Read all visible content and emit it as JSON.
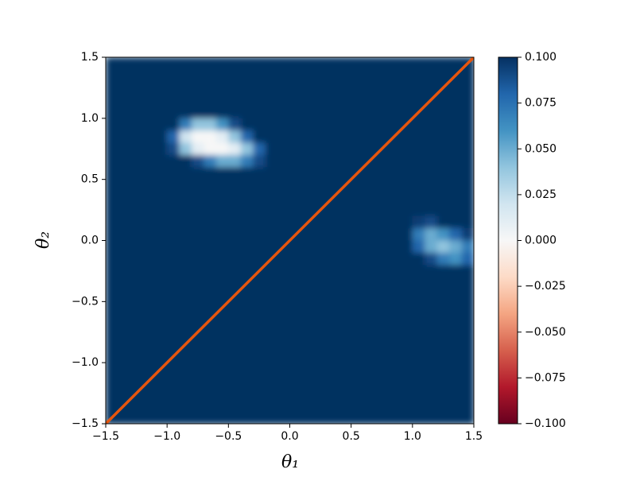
{
  "chart_data": {
    "type": "heatmap",
    "xlabel": "θ₁",
    "ylabel": "θ₂",
    "xlim": [
      -1.5,
      1.5
    ],
    "ylim": [
      -1.5,
      1.5
    ],
    "xticks": [
      {
        "value": -1.5,
        "label": "−1.5"
      },
      {
        "value": -1,
        "label": "−1.0"
      },
      {
        "value": -0.5,
        "label": "−0.5"
      },
      {
        "value": 0,
        "label": "0.0"
      },
      0.5,
      {
        "value": 1,
        "label": "1.0"
      },
      1.5
    ],
    "yticks": [
      {
        "value": -1.5,
        "label": "−1.5"
      },
      {
        "value": -1,
        "label": "−1.0"
      },
      {
        "value": -0.5,
        "label": "−0.5"
      },
      {
        "value": 0,
        "label": "0.0"
      },
      0.5,
      {
        "value": 1,
        "label": "1.0"
      },
      1.5
    ],
    "clim": [
      -0.1,
      0.1
    ],
    "cticks": [
      {
        "value": -0.1,
        "label": "−0.100"
      },
      {
        "value": -0.075,
        "label": "−0.075"
      },
      {
        "value": -0.05,
        "label": "−0.050"
      },
      {
        "value": -0.025,
        "label": "−0.025"
      },
      {
        "value": 0,
        "label": "0.000"
      },
      {
        "value": 0.025,
        "label": "0.025"
      },
      {
        "value": 0.05,
        "label": "0.050"
      },
      {
        "value": 0.075,
        "label": "0.075"
      },
      {
        "value": 0.1,
        "label": "0.100"
      }
    ],
    "colormap": [
      "#67001f",
      "#b2182b",
      "#d6604d",
      "#f4a582",
      "#fddbc7",
      "#f7f7f7",
      "#d1e5f0",
      "#92c5de",
      "#4393c3",
      "#2166ac",
      "#053061"
    ],
    "z": [
      [
        0.1,
        0.1,
        0.1,
        0.1,
        0.1,
        0.1,
        0.1,
        0.1,
        0.1,
        0.1,
        0.1,
        0.1,
        0.1,
        0.1,
        0.1,
        0.1,
        0.1,
        0.1,
        0.1,
        0.1,
        0.1,
        0.1,
        0.1,
        0.1,
        0.1,
        0.1,
        0.1,
        0.1,
        0.1,
        0.1
      ],
      [
        0.1,
        0.1,
        0.1,
        0.1,
        0.1,
        0.1,
        0.1,
        0.1,
        0.1,
        0.1,
        0.1,
        0.1,
        0.1,
        0.1,
        0.1,
        0.1,
        0.1,
        0.1,
        0.1,
        0.1,
        0.1,
        0.1,
        0.1,
        0.1,
        0.1,
        0.1,
        0.1,
        0.1,
        0.1,
        0.1
      ],
      [
        0.1,
        0.1,
        0.1,
        0.1,
        0.1,
        0.1,
        0.1,
        0.1,
        0.1,
        0.1,
        0.1,
        0.1,
        0.1,
        0.1,
        0.1,
        0.1,
        0.1,
        0.1,
        0.1,
        0.1,
        0.1,
        0.1,
        0.1,
        0.1,
        0.1,
        0.1,
        0.1,
        0.1,
        0.1,
        0.1
      ],
      [
        0.1,
        0.1,
        0.1,
        0.1,
        0.1,
        0.1,
        0.1,
        0.1,
        0.1,
        0.1,
        0.1,
        0.1,
        0.1,
        0.1,
        0.1,
        0.1,
        0.1,
        0.1,
        0.1,
        0.1,
        0.1,
        0.1,
        0.1,
        0.1,
        0.1,
        0.1,
        0.1,
        0.1,
        0.1,
        0.1
      ],
      [
        0.1,
        0.1,
        0.1,
        0.1,
        0.1,
        0.1,
        0.1,
        0.1,
        0.1,
        0.1,
        0.1,
        0.1,
        0.1,
        0.1,
        0.1,
        0.1,
        0.1,
        0.1,
        0.1,
        0.1,
        0.1,
        0.1,
        0.1,
        0.1,
        0.1,
        0.1,
        0.1,
        0.1,
        0.1,
        0.1
      ],
      [
        0.1,
        0.1,
        0.1,
        0.1,
        0.1,
        0.1,
        0.07,
        0.04,
        0.04,
        0.06,
        0.09,
        0.1,
        0.1,
        0.1,
        0.1,
        0.1,
        0.1,
        0.1,
        0.1,
        0.1,
        0.1,
        0.1,
        0.1,
        0.1,
        0.1,
        0.1,
        0.1,
        0.1,
        0.1,
        0.1
      ],
      [
        0.1,
        0.1,
        0.1,
        0.1,
        0.1,
        0.08,
        0.02,
        0,
        0,
        0.01,
        0.04,
        0.08,
        0.1,
        0.1,
        0.1,
        0.1,
        0.1,
        0.1,
        0.1,
        0.1,
        0.1,
        0.1,
        0.1,
        0.1,
        0.1,
        0.1,
        0.1,
        0.1,
        0.1,
        0.1
      ],
      [
        0.1,
        0.1,
        0.1,
        0.1,
        0.1,
        0.09,
        0.04,
        0.01,
        0,
        0,
        0.01,
        0.04,
        0.08,
        0.1,
        0.1,
        0.1,
        0.1,
        0.1,
        0.1,
        0.1,
        0.1,
        0.1,
        0.1,
        0.1,
        0.1,
        0.1,
        0.1,
        0.1,
        0.1,
        0.1
      ],
      [
        0.1,
        0.1,
        0.1,
        0.1,
        0.1,
        0.1,
        0.1,
        0.09,
        0.07,
        0.05,
        0.05,
        0.07,
        0.09,
        0.1,
        0.1,
        0.1,
        0.1,
        0.1,
        0.1,
        0.1,
        0.1,
        0.1,
        0.1,
        0.1,
        0.1,
        0.1,
        0.1,
        0.1,
        0.1,
        0.1
      ],
      [
        0.1,
        0.1,
        0.1,
        0.1,
        0.1,
        0.1,
        0.1,
        0.1,
        0.1,
        0.1,
        0.1,
        0.1,
        0.1,
        0.1,
        0.1,
        0.1,
        0.1,
        0.1,
        0.1,
        0.1,
        0.1,
        0.1,
        0.1,
        0.1,
        0.1,
        0.1,
        0.1,
        0.1,
        0.1,
        0.1
      ],
      [
        0.1,
        0.1,
        0.1,
        0.1,
        0.1,
        0.1,
        0.1,
        0.1,
        0.1,
        0.1,
        0.1,
        0.1,
        0.1,
        0.1,
        0.1,
        0.1,
        0.1,
        0.1,
        0.1,
        0.1,
        0.1,
        0.1,
        0.1,
        0.1,
        0.1,
        0.1,
        0.1,
        0.1,
        0.1,
        0.1
      ],
      [
        0.1,
        0.1,
        0.1,
        0.1,
        0.1,
        0.1,
        0.1,
        0.1,
        0.1,
        0.1,
        0.1,
        0.1,
        0.1,
        0.1,
        0.1,
        0.1,
        0.1,
        0.1,
        0.1,
        0.1,
        0.1,
        0.1,
        0.1,
        0.1,
        0.1,
        0.1,
        0.1,
        0.1,
        0.1,
        0.1
      ],
      [
        0.1,
        0.1,
        0.1,
        0.1,
        0.1,
        0.1,
        0.1,
        0.1,
        0.1,
        0.1,
        0.1,
        0.1,
        0.1,
        0.1,
        0.1,
        0.1,
        0.1,
        0.1,
        0.1,
        0.1,
        0.1,
        0.1,
        0.1,
        0.1,
        0.1,
        0.1,
        0.1,
        0.1,
        0.1,
        0.1
      ],
      [
        0.1,
        0.1,
        0.1,
        0.1,
        0.1,
        0.1,
        0.1,
        0.1,
        0.1,
        0.1,
        0.1,
        0.1,
        0.1,
        0.1,
        0.1,
        0.1,
        0.1,
        0.1,
        0.1,
        0.1,
        0.1,
        0.1,
        0.1,
        0.1,
        0.1,
        0.095,
        0.09,
        0.1,
        0.1,
        0.1
      ],
      [
        0.1,
        0.1,
        0.1,
        0.1,
        0.1,
        0.1,
        0.1,
        0.1,
        0.1,
        0.1,
        0.1,
        0.1,
        0.1,
        0.1,
        0.1,
        0.1,
        0.1,
        0.1,
        0.1,
        0.1,
        0.1,
        0.1,
        0.1,
        0.1,
        0.1,
        0.07,
        0.05,
        0.06,
        0.08,
        0.095
      ],
      [
        0.1,
        0.1,
        0.1,
        0.1,
        0.1,
        0.1,
        0.1,
        0.1,
        0.1,
        0.1,
        0.1,
        0.1,
        0.1,
        0.1,
        0.1,
        0.1,
        0.1,
        0.1,
        0.1,
        0.1,
        0.1,
        0.1,
        0.1,
        0.1,
        0.1,
        0.08,
        0.05,
        0.04,
        0.05,
        0.07
      ],
      [
        0.1,
        0.1,
        0.1,
        0.1,
        0.1,
        0.1,
        0.1,
        0.1,
        0.1,
        0.1,
        0.1,
        0.1,
        0.1,
        0.1,
        0.1,
        0.1,
        0.1,
        0.1,
        0.1,
        0.1,
        0.1,
        0.1,
        0.1,
        0.1,
        0.1,
        0.1,
        0.09,
        0.07,
        0.06,
        0.08
      ],
      [
        0.1,
        0.1,
        0.1,
        0.1,
        0.1,
        0.1,
        0.1,
        0.1,
        0.1,
        0.1,
        0.1,
        0.1,
        0.1,
        0.1,
        0.1,
        0.1,
        0.1,
        0.1,
        0.1,
        0.1,
        0.1,
        0.1,
        0.1,
        0.1,
        0.1,
        0.1,
        0.1,
        0.1,
        0.1,
        0.1
      ],
      [
        0.1,
        0.1,
        0.1,
        0.1,
        0.1,
        0.1,
        0.1,
        0.1,
        0.1,
        0.1,
        0.1,
        0.1,
        0.1,
        0.1,
        0.1,
        0.1,
        0.1,
        0.1,
        0.1,
        0.1,
        0.1,
        0.1,
        0.1,
        0.1,
        0.1,
        0.1,
        0.1,
        0.1,
        0.1,
        0.1
      ],
      [
        0.1,
        0.1,
        0.1,
        0.1,
        0.1,
        0.1,
        0.1,
        0.1,
        0.1,
        0.1,
        0.1,
        0.1,
        0.1,
        0.1,
        0.1,
        0.1,
        0.1,
        0.1,
        0.1,
        0.1,
        0.1,
        0.1,
        0.1,
        0.1,
        0.1,
        0.1,
        0.1,
        0.1,
        0.1,
        0.1
      ],
      [
        0.1,
        0.1,
        0.1,
        0.1,
        0.1,
        0.1,
        0.1,
        0.1,
        0.1,
        0.1,
        0.1,
        0.1,
        0.1,
        0.1,
        0.1,
        0.1,
        0.1,
        0.1,
        0.1,
        0.1,
        0.1,
        0.1,
        0.1,
        0.1,
        0.1,
        0.1,
        0.1,
        0.1,
        0.1,
        0.1
      ],
      [
        0.1,
        0.1,
        0.1,
        0.1,
        0.1,
        0.1,
        0.1,
        0.1,
        0.1,
        0.1,
        0.1,
        0.1,
        0.1,
        0.1,
        0.1,
        0.1,
        0.1,
        0.1,
        0.1,
        0.1,
        0.1,
        0.1,
        0.1,
        0.1,
        0.1,
        0.1,
        0.1,
        0.1,
        0.1,
        0.1
      ],
      [
        0.1,
        0.1,
        0.1,
        0.1,
        0.1,
        0.1,
        0.1,
        0.1,
        0.1,
        0.1,
        0.1,
        0.1,
        0.1,
        0.1,
        0.1,
        0.1,
        0.1,
        0.1,
        0.1,
        0.1,
        0.1,
        0.1,
        0.1,
        0.1,
        0.1,
        0.1,
        0.1,
        0.1,
        0.1,
        0.1
      ],
      [
        0.1,
        0.1,
        0.1,
        0.1,
        0.1,
        0.1,
        0.1,
        0.1,
        0.1,
        0.1,
        0.1,
        0.1,
        0.1,
        0.1,
        0.1,
        0.1,
        0.1,
        0.1,
        0.1,
        0.1,
        0.1,
        0.1,
        0.1,
        0.1,
        0.1,
        0.1,
        0.1,
        0.1,
        0.1,
        0.1
      ],
      [
        0.1,
        0.1,
        0.1,
        0.1,
        0.1,
        0.1,
        0.1,
        0.1,
        0.1,
        0.1,
        0.1,
        0.1,
        0.1,
        0.1,
        0.1,
        0.1,
        0.1,
        0.1,
        0.1,
        0.1,
        0.1,
        0.1,
        0.1,
        0.1,
        0.1,
        0.1,
        0.1,
        0.1,
        0.1,
        0.1
      ],
      [
        0.1,
        0.1,
        0.1,
        0.1,
        0.1,
        0.1,
        0.1,
        0.1,
        0.1,
        0.1,
        0.1,
        0.1,
        0.1,
        0.1,
        0.1,
        0.1,
        0.1,
        0.1,
        0.1,
        0.1,
        0.1,
        0.1,
        0.1,
        0.1,
        0.1,
        0.1,
        0.1,
        0.1,
        0.1,
        0.1
      ],
      [
        0.1,
        0.1,
        0.1,
        0.1,
        0.1,
        0.1,
        0.1,
        0.1,
        0.1,
        0.1,
        0.1,
        0.1,
        0.1,
        0.1,
        0.1,
        0.1,
        0.1,
        0.1,
        0.1,
        0.1,
        0.1,
        0.1,
        0.1,
        0.1,
        0.1,
        0.1,
        0.1,
        0.1,
        0.1,
        0.1
      ],
      [
        0.1,
        0.1,
        0.1,
        0.1,
        0.1,
        0.1,
        0.1,
        0.1,
        0.1,
        0.1,
        0.1,
        0.1,
        0.1,
        0.1,
        0.1,
        0.1,
        0.1,
        0.1,
        0.1,
        0.1,
        0.1,
        0.1,
        0.1,
        0.1,
        0.1,
        0.1,
        0.1,
        0.1,
        0.1,
        0.1
      ],
      [
        0.1,
        0.1,
        0.1,
        0.1,
        0.1,
        0.1,
        0.1,
        0.1,
        0.1,
        0.1,
        0.1,
        0.1,
        0.1,
        0.1,
        0.1,
        0.1,
        0.1,
        0.1,
        0.1,
        0.1,
        0.1,
        0.1,
        0.1,
        0.1,
        0.1,
        0.1,
        0.1,
        0.1,
        0.1,
        0.1
      ],
      [
        0.1,
        0.1,
        0.1,
        0.1,
        0.1,
        0.1,
        0.1,
        0.1,
        0.1,
        0.1,
        0.1,
        0.1,
        0.1,
        0.1,
        0.1,
        0.1,
        0.1,
        0.1,
        0.1,
        0.1,
        0.1,
        0.1,
        0.1,
        0.1,
        0.1,
        0.1,
        0.1,
        0.1,
        0.1,
        0.1
      ]
    ],
    "lines": [
      {
        "color": "#e6550d",
        "x": [
          -1.5,
          1.5
        ],
        "y": [
          -1.5,
          1.5
        ]
      }
    ]
  }
}
